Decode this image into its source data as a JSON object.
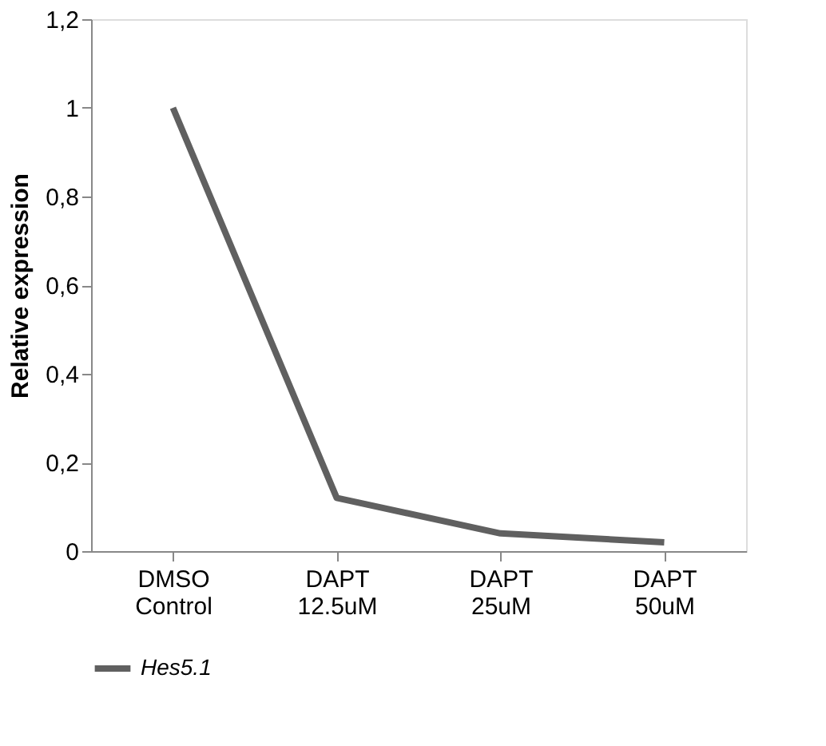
{
  "chart_data": {
    "type": "line",
    "ylabel": "Relative expression",
    "categories": [
      "DMSO Control",
      "DAPT 12.5uM",
      "DAPT 25uM",
      "DAPT 50uM"
    ],
    "series": [
      {
        "name": "Hes5.1",
        "color": "#606060",
        "values": [
          1.0,
          0.12,
          0.04,
          0.02
        ]
      }
    ],
    "ylim": [
      0,
      1.2
    ],
    "yticks": [
      0,
      {
        "value": 0.2,
        "label": "0,2"
      },
      {
        "value": 0.4,
        "label": "0,4"
      },
      {
        "value": 0.6,
        "label": "0,6"
      },
      {
        "value": 0.8,
        "label": "0,8"
      },
      1,
      {
        "value": 1.2,
        "label": "1,2"
      }
    ],
    "grid": false,
    "legend": "bottom",
    "marker": "none",
    "line_style": "solid"
  }
}
